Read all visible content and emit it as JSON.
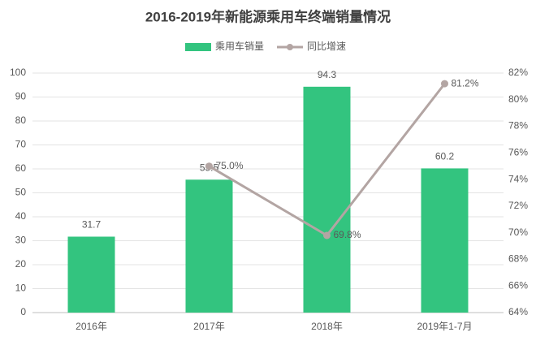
{
  "chart_data": {
    "type": "combo",
    "title": "2016-2019年新能源乘用车终端销量情况",
    "categories": [
      "2016年",
      "2017年",
      "2018年",
      "2019年1-7月"
    ],
    "series": [
      {
        "name": "乘用车销量",
        "type": "bar",
        "color": "#33c47f",
        "values": [
          31.7,
          55.5,
          94.3,
          60.2
        ]
      },
      {
        "name": "同比增速",
        "type": "line",
        "axis": "y2",
        "color": "#b3a5a3",
        "values": [
          null,
          75.0,
          69.8,
          81.2
        ],
        "value_labels": [
          null,
          "75.0%",
          "69.8%",
          "81.2%"
        ]
      }
    ],
    "ylim": [
      0,
      100
    ],
    "yticks": [
      0,
      10,
      20,
      30,
      40,
      50,
      60,
      70,
      80,
      90,
      100
    ],
    "y2lim": [
      64,
      82
    ],
    "y2ticks": [
      {
        "value": 64,
        "label": "64%"
      },
      {
        "value": 66,
        "label": "66%"
      },
      {
        "value": 68,
        "label": "68%"
      },
      {
        "value": 70,
        "label": "70%"
      },
      {
        "value": 72,
        "label": "72%"
      },
      {
        "value": 74,
        "label": "74%"
      },
      {
        "value": 76,
        "label": "76%"
      },
      {
        "value": 78,
        "label": "78%"
      },
      {
        "value": 80,
        "label": "80%"
      },
      {
        "value": 82,
        "label": "82%"
      }
    ],
    "grid": true,
    "legend": "top"
  }
}
